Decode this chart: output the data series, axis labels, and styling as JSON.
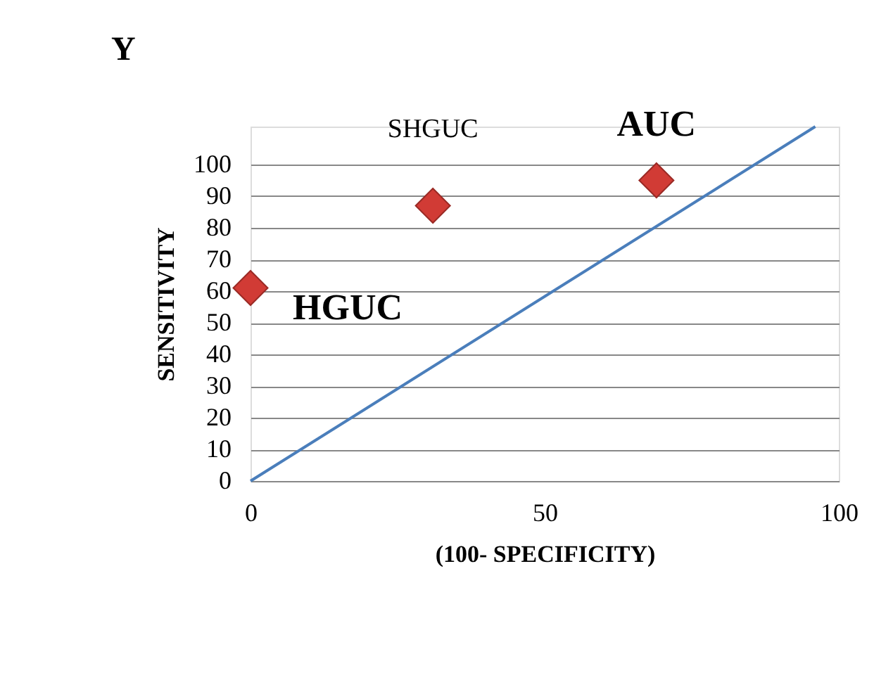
{
  "chart_data": {
    "type": "scatter",
    "title": "Y",
    "xlabel": "(100- SPECIFICITY)",
    "ylabel": "SENSITIVITY",
    "series": [
      {
        "color": "#d13b35",
        "marker": "diamond",
        "x": [
          0,
          31,
          69
        ],
        "values": [
          61,
          87,
          95
        ]
      },
      {
        "type": "line",
        "color": "#4a7ebb",
        "marker": "none",
        "x": [
          0,
          96
        ],
        "values": [
          0,
          112
        ]
      }
    ],
    "annotations": [
      {
        "text": "HGUC",
        "x": 0,
        "y": 61
      },
      {
        "text": "SHGUC",
        "x": 31,
        "y": 87
      },
      {
        "text": "AUC",
        "x": 69,
        "y": 95
      }
    ],
    "xlim": [
      0,
      100
    ],
    "xticks": [
      0,
      50,
      100
    ],
    "ylim": [
      0,
      112
    ],
    "yticks": [
      0,
      10,
      20,
      30,
      40,
      50,
      60,
      70,
      80,
      90,
      100
    ],
    "grid": "y"
  }
}
